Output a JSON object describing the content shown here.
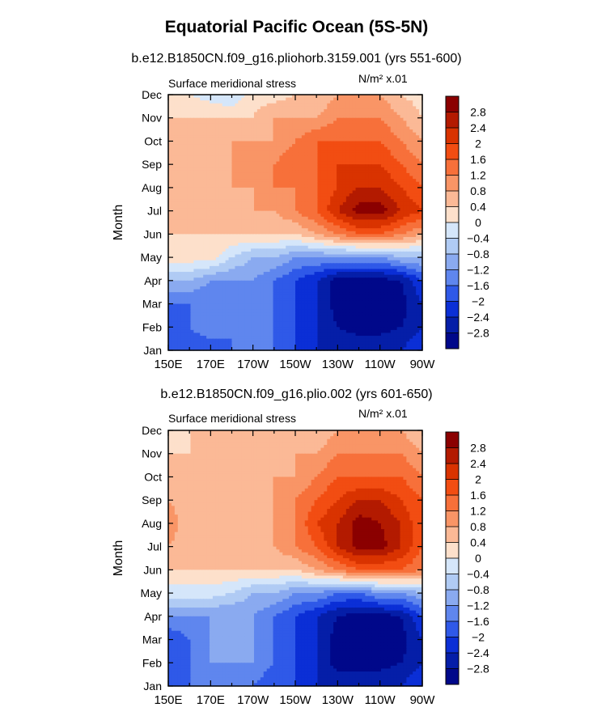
{
  "figure": {
    "title": "Equatorial Pacific Ocean (5S-5N)"
  },
  "chart_data": [
    {
      "type": "heatmap",
      "subtitle": "b.e12.B1850CN.f09_g16.pliohorb.3159.001 (yrs 551-600)",
      "left_label": "Surface meridional stress",
      "units_label": "N/m² x.01",
      "xlabel": "",
      "ylabel": "Month",
      "x_ticks": [
        "150E",
        "170E",
        "170W",
        "150W",
        "130W",
        "110W",
        "90W"
      ],
      "x_range_deg_east": [
        150,
        270
      ],
      "y_ticks": [
        "Jan",
        "Feb",
        "Mar",
        "Apr",
        "May",
        "Jun",
        "Jul",
        "Aug",
        "Sep",
        "Oct",
        "Nov",
        "Dec"
      ],
      "colorbar_levels": [
        "2.8",
        "2.4",
        "2",
        "1.6",
        "1.2",
        "0.8",
        "0.4",
        "0",
        "-0.4",
        "-0.8",
        "-1.2",
        "-1.6",
        "-2",
        "-2.4",
        "-2.8"
      ],
      "colorbar_colors": [
        "#8b0000",
        "#b31a00",
        "#d93300",
        "#f24d12",
        "#f7703a",
        "#f99566",
        "#fbb996",
        "#fde0cb",
        "#d5e6fa",
        "#b0cbf4",
        "#8aaaf0",
        "#5f86ee",
        "#2f59e8",
        "#0b2fd6",
        "#051ea8",
        "#00088a"
      ],
      "x_lon_samples": [
        150,
        160,
        170,
        180,
        190,
        200,
        210,
        220,
        230,
        240,
        250,
        260,
        270
      ],
      "values": [
        [
          -1.6,
          -2.0,
          -2.0,
          -1.6,
          -1.6,
          -1.6,
          -2.0,
          -2.4,
          -2.4,
          -2.4,
          -2.4,
          -2.4,
          -2.0
        ],
        [
          -2.0,
          -1.6,
          -1.2,
          -1.6,
          -1.6,
          -1.6,
          -2.0,
          -2.4,
          -2.8,
          -3.0,
          -3.0,
          -2.8,
          -2.4
        ],
        [
          -1.6,
          -1.6,
          -1.6,
          -1.6,
          -1.6,
          -1.6,
          -2.0,
          -2.4,
          -3.0,
          -3.0,
          -3.0,
          -3.0,
          -2.4
        ],
        [
          -0.8,
          -0.8,
          -1.2,
          -1.2,
          -1.2,
          -1.6,
          -2.0,
          -2.4,
          -3.0,
          -3.0,
          -3.0,
          -2.8,
          -2.0
        ],
        [
          0.2,
          0.2,
          0.2,
          -0.4,
          -0.8,
          -0.8,
          -1.2,
          -1.2,
          -1.2,
          -1.2,
          -1.2,
          -0.8,
          -0.8
        ],
        [
          0.4,
          0.4,
          0.4,
          0.4,
          0.4,
          0.4,
          0.4,
          0.8,
          1.2,
          1.6,
          1.6,
          1.2,
          0.8
        ],
        [
          0.4,
          0.4,
          0.4,
          0.4,
          0.8,
          0.8,
          1.2,
          1.6,
          2.4,
          3.0,
          3.0,
          2.4,
          2.0
        ],
        [
          0.4,
          0.4,
          0.4,
          0.8,
          0.8,
          1.2,
          1.2,
          1.6,
          2.0,
          2.4,
          2.4,
          2.0,
          1.6
        ],
        [
          0.4,
          0.4,
          0.4,
          0.8,
          0.8,
          1.2,
          1.6,
          1.6,
          2.0,
          2.0,
          2.0,
          1.6,
          1.2
        ],
        [
          0.4,
          0.4,
          0.4,
          0.8,
          0.8,
          0.8,
          1.2,
          1.6,
          1.6,
          1.6,
          1.6,
          1.2,
          0.8
        ],
        [
          0.4,
          0.4,
          0.4,
          0.4,
          0.4,
          0.8,
          0.8,
          0.8,
          1.2,
          1.2,
          1.2,
          0.8,
          0.4
        ],
        [
          0.2,
          0.0,
          -0.2,
          -0.4,
          0.2,
          0.2,
          0.4,
          0.4,
          0.8,
          0.8,
          0.8,
          0.4,
          0.2
        ]
      ]
    },
    {
      "type": "heatmap",
      "subtitle": "b.e12.B1850CN.f09_g16.plio.002 (yrs 601-650)",
      "left_label": "Surface meridional stress",
      "units_label": "N/m² x.01",
      "xlabel": "",
      "ylabel": "Month",
      "x_ticks": [
        "150E",
        "170E",
        "170W",
        "150W",
        "130W",
        "110W",
        "90W"
      ],
      "x_range_deg_east": [
        150,
        270
      ],
      "y_ticks": [
        "Jan",
        "Feb",
        "Mar",
        "Apr",
        "May",
        "Jun",
        "Jul",
        "Aug",
        "Sep",
        "Oct",
        "Nov",
        "Dec"
      ],
      "colorbar_levels": [
        "2.8",
        "2.4",
        "2",
        "1.6",
        "1.2",
        "0.8",
        "0.4",
        "0",
        "-0.4",
        "-0.8",
        "-1.2",
        "-1.6",
        "-2",
        "-2.4",
        "-2.8"
      ],
      "colorbar_colors": [
        "#8b0000",
        "#b31a00",
        "#d93300",
        "#f24d12",
        "#f7703a",
        "#f99566",
        "#fbb996",
        "#fde0cb",
        "#d5e6fa",
        "#b0cbf4",
        "#8aaaf0",
        "#5f86ee",
        "#2f59e8",
        "#0b2fd6",
        "#051ea8",
        "#00088a"
      ],
      "x_lon_samples": [
        150,
        160,
        170,
        180,
        190,
        200,
        210,
        220,
        230,
        240,
        250,
        260,
        270
      ],
      "values": [
        [
          -1.6,
          -1.6,
          -1.6,
          -1.6,
          -1.6,
          -2.0,
          -2.0,
          -2.4,
          -2.4,
          -2.4,
          -2.4,
          -2.4,
          -2.0
        ],
        [
          -2.0,
          -1.6,
          -1.2,
          -1.2,
          -1.2,
          -1.6,
          -2.0,
          -2.4,
          -3.0,
          -3.0,
          -3.0,
          -2.8,
          -2.4
        ],
        [
          -2.0,
          -1.6,
          -1.2,
          -1.2,
          -1.2,
          -1.6,
          -2.0,
          -2.4,
          -3.0,
          -3.0,
          -3.0,
          -3.0,
          -2.4
        ],
        [
          -1.2,
          -1.2,
          -1.2,
          -1.2,
          -1.2,
          -1.6,
          -2.0,
          -2.4,
          -2.8,
          -3.0,
          -3.0,
          -2.8,
          -2.0
        ],
        [
          -0.2,
          -0.2,
          -0.2,
          -0.4,
          -0.8,
          -0.8,
          -1.2,
          -1.2,
          -1.6,
          -1.6,
          -1.2,
          -1.2,
          -0.8
        ],
        [
          0.4,
          0.4,
          0.4,
          0.4,
          0.4,
          0.4,
          0.4,
          0.8,
          1.2,
          1.6,
          1.6,
          1.6,
          1.2
        ],
        [
          0.8,
          0.4,
          0.4,
          0.4,
          0.4,
          0.8,
          1.2,
          1.6,
          2.4,
          3.0,
          3.0,
          2.4,
          1.6
        ],
        [
          1.2,
          0.4,
          0.4,
          0.4,
          0.8,
          0.8,
          1.2,
          2.0,
          2.4,
          3.0,
          2.8,
          2.4,
          1.6
        ],
        [
          0.8,
          0.4,
          0.4,
          0.4,
          0.4,
          0.8,
          1.2,
          1.6,
          2.0,
          2.4,
          2.4,
          2.0,
          1.6
        ],
        [
          0.4,
          0.4,
          0.4,
          0.4,
          0.4,
          0.8,
          0.8,
          1.2,
          1.6,
          1.6,
          1.6,
          1.6,
          1.2
        ],
        [
          0.4,
          0.4,
          0.4,
          0.4,
          0.4,
          0.4,
          0.8,
          0.8,
          1.2,
          1.2,
          1.2,
          1.2,
          0.8
        ],
        [
          0.0,
          0.4,
          0.4,
          0.4,
          0.4,
          0.4,
          0.4,
          0.4,
          0.8,
          0.8,
          0.8,
          0.8,
          0.4
        ]
      ]
    }
  ]
}
